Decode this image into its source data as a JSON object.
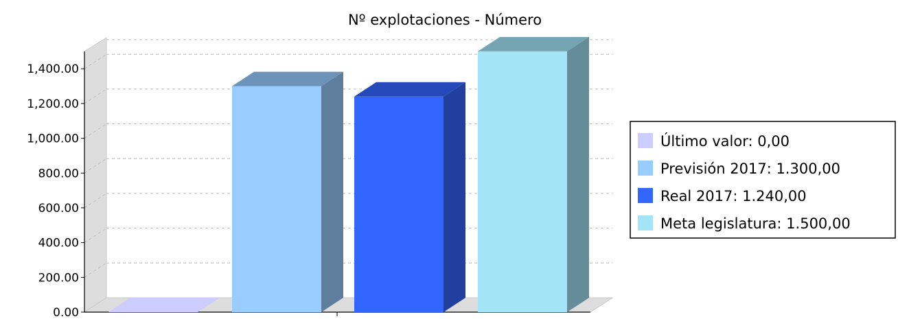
{
  "chart_data": {
    "type": "bar",
    "title": "Nº explotaciones - Número",
    "xlabel": "",
    "ylabel": "",
    "ylim": [
      0,
      1500
    ],
    "y_ticks": [
      "0.00",
      "200.00",
      "400.00",
      "600.00",
      "800.00",
      "1,000.00",
      "1,200.00",
      "1,400.00"
    ],
    "y_tick_values": [
      0,
      200,
      400,
      600,
      800,
      1000,
      1200,
      1400
    ],
    "grid": true,
    "legend_position": "right",
    "series": [
      {
        "name": "Último valor",
        "label": "Último valor: 0,00",
        "value": 0,
        "color": "#ccccff"
      },
      {
        "name": "Previsión 2017",
        "label": "Previsión 2017: 1.300,00",
        "value": 1300,
        "color": "#99ccff"
      },
      {
        "name": "Real 2017",
        "label": "Real 2017: 1.240,00",
        "value": 1240,
        "color": "#3366ff"
      },
      {
        "name": "Meta legislatura",
        "label": "Meta legislatura: 1.500,00",
        "value": 1500,
        "color": "#a3e4f7"
      }
    ]
  }
}
